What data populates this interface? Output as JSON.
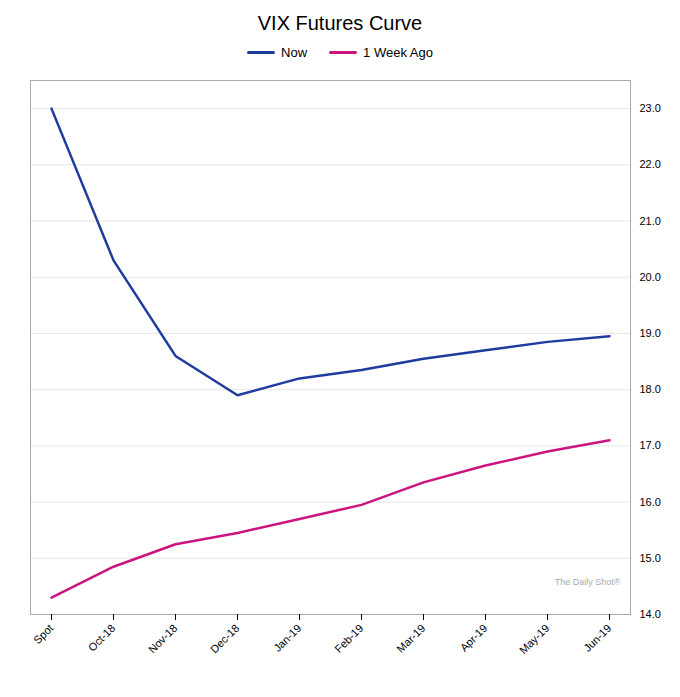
{
  "chart_data": {
    "type": "line",
    "title": "VIX Futures Curve",
    "categories": [
      "Spot",
      "Oct-18",
      "Nov-18",
      "Dec-18",
      "Jan-19",
      "Feb-19",
      "Mar-19",
      "Apr-19",
      "May-19",
      "Jun-19"
    ],
    "series": [
      {
        "name": "Now",
        "color": "#1f3b9e",
        "values": [
          23.0,
          20.3,
          18.6,
          17.9,
          18.2,
          18.35,
          18.55,
          18.7,
          18.85,
          18.95
        ]
      },
      {
        "name": "1 Week Ago",
        "color": "#cc1480",
        "values": [
          14.3,
          14.85,
          15.25,
          15.45,
          15.7,
          15.95,
          16.35,
          16.65,
          16.9,
          17.1
        ]
      }
    ],
    "ylim": [
      14.0,
      23.5
    ],
    "yticks": [
      {
        "value": 14,
        "label": "14.0"
      },
      {
        "value": 15,
        "label": "15.0"
      },
      {
        "value": 16,
        "label": "16.0"
      },
      {
        "value": 17,
        "label": "17.0"
      },
      {
        "value": 18,
        "label": "18.0"
      },
      {
        "value": 19,
        "label": "19.0"
      },
      {
        "value": 20,
        "label": "20.0"
      },
      {
        "value": 21,
        "label": "21.0"
      },
      {
        "value": 22,
        "label": "22.0"
      },
      {
        "value": 23,
        "label": "23.0"
      }
    ],
    "grid": true,
    "legend": "top",
    "annotations": [
      "The Daily Shot®"
    ]
  }
}
